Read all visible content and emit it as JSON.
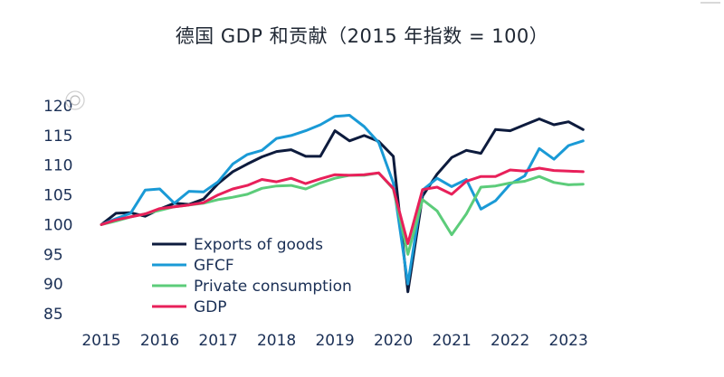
{
  "chart_data": {
    "type": "line",
    "title": "德国 GDP 和贡献（2015 年指数 = 100）",
    "xlabel": "",
    "ylabel": "",
    "xlim": [
      2015,
      2023.4
    ],
    "ylim": [
      85,
      120
    ],
    "yticks": [
      85,
      90,
      95,
      100,
      105,
      110,
      115,
      120
    ],
    "xticks": [
      2015,
      2016,
      2017,
      2018,
      2019,
      2020,
      2021,
      2022,
      2023
    ],
    "grid": false,
    "legend_position": "bottom-left",
    "x": [
      2015.0,
      2015.25,
      2015.5,
      2015.75,
      2016.0,
      2016.25,
      2016.5,
      2016.75,
      2017.0,
      2017.25,
      2017.5,
      2017.75,
      2018.0,
      2018.25,
      2018.5,
      2018.75,
      2019.0,
      2019.25,
      2019.5,
      2019.75,
      2020.0,
      2020.25,
      2020.5,
      2020.75,
      2021.0,
      2021.25,
      2021.5,
      2021.75,
      2022.0,
      2022.25,
      2022.5,
      2022.75,
      2023.0,
      2023.25
    ],
    "series": [
      {
        "name": "Exports of goods",
        "color": "#0d1b3d",
        "values": [
          100.0,
          101.9,
          102.0,
          101.4,
          102.6,
          103.6,
          103.4,
          104.3,
          106.9,
          108.9,
          110.2,
          111.4,
          112.3,
          112.6,
          111.5,
          111.5,
          115.8,
          114.1,
          115.0,
          114.0,
          111.5,
          88.7,
          104.8,
          108.5,
          111.3,
          112.5,
          112.0,
          116.0,
          115.8,
          116.8,
          117.8,
          116.8,
          117.3,
          116.0
        ]
      },
      {
        "name": "GFCF",
        "color": "#1a9ad6",
        "values": [
          100.0,
          101.0,
          101.9,
          105.8,
          106.0,
          103.6,
          105.6,
          105.5,
          107.2,
          110.2,
          111.8,
          112.5,
          114.5,
          115.0,
          115.8,
          116.8,
          118.2,
          118.4,
          116.5,
          113.8,
          107.0,
          90.0,
          105.8,
          107.8,
          106.4,
          107.6,
          102.6,
          104.0,
          106.8,
          108.2,
          112.8,
          111.0,
          113.3,
          114.1
        ]
      },
      {
        "name": "Private consumption",
        "color": "#5ccc7a",
        "values": [
          100.0,
          100.6,
          101.3,
          101.8,
          102.4,
          103.0,
          103.3,
          103.6,
          104.2,
          104.6,
          105.1,
          106.1,
          106.5,
          106.6,
          106.0,
          107.0,
          107.8,
          108.3,
          108.3,
          108.7,
          106.0,
          95.0,
          104.2,
          102.3,
          98.3,
          101.8,
          106.3,
          106.5,
          107.0,
          107.3,
          108.1,
          107.1,
          106.7,
          106.8
        ]
      },
      {
        "name": "GDP",
        "color": "#e8205a",
        "values": [
          100.0,
          100.8,
          101.3,
          101.8,
          102.7,
          103.0,
          103.3,
          103.7,
          105.0,
          106.0,
          106.6,
          107.6,
          107.2,
          107.8,
          106.9,
          107.7,
          108.4,
          108.3,
          108.4,
          108.7,
          106.1,
          96.8,
          105.9,
          106.3,
          105.1,
          107.3,
          108.1,
          108.1,
          109.2,
          109.0,
          109.5,
          109.1,
          109.0,
          108.9
        ]
      }
    ]
  }
}
